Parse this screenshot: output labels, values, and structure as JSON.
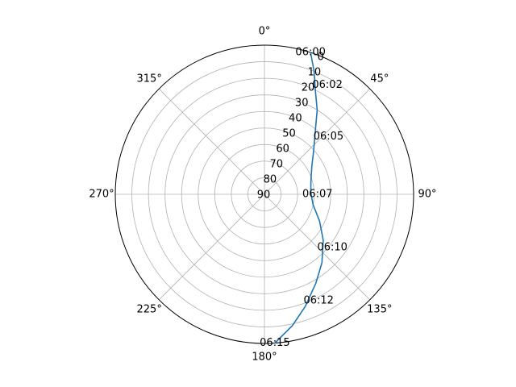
{
  "chart_data": {
    "type": "line",
    "projection": "polar",
    "theta_direction": "clockwise",
    "theta_zero": "top",
    "theta_tick_labels": [
      "0°",
      "45°",
      "90°",
      "135°",
      "180°",
      "225°",
      "270°",
      "315°"
    ],
    "r_tick_labels": [
      "0",
      "10",
      "20",
      "30",
      "40",
      "50",
      "60",
      "70",
      "80",
      "90"
    ],
    "r_axis": "elevation (90 at center, 0 at edge)",
    "grid": true,
    "series": [
      {
        "color": "#1f77b4",
        "points": [
          {
            "az": 18,
            "el": 0
          },
          {
            "az": 22,
            "el": 10
          },
          {
            "az": 26,
            "el": 20
          },
          {
            "az": 32,
            "el": 30
          },
          {
            "az": 38,
            "el": 40
          },
          {
            "az": 48,
            "el": 50
          },
          {
            "az": 60,
            "el": 57
          },
          {
            "az": 75,
            "el": 61
          },
          {
            "az": 88,
            "el": 62
          },
          {
            "az": 102,
            "el": 60
          },
          {
            "az": 116,
            "el": 53
          },
          {
            "az": 128,
            "el": 45
          },
          {
            "az": 140,
            "el": 36
          },
          {
            "az": 150,
            "el": 28
          },
          {
            "az": 160,
            "el": 18
          },
          {
            "az": 168,
            "el": 9
          },
          {
            "az": 176,
            "el": 0
          }
        ]
      }
    ],
    "annotations": [
      {
        "text": "06:00",
        "az": 18,
        "el": 0
      },
      {
        "text": "06:02",
        "az": 30,
        "el": 14
      },
      {
        "text": "06:05",
        "az": 48,
        "el": 38
      },
      {
        "text": "06:07",
        "az": 90,
        "el": 58
      },
      {
        "text": "06:10",
        "az": 128,
        "el": 38
      },
      {
        "text": "06:12",
        "az": 153,
        "el": 18
      },
      {
        "text": "06:15",
        "az": 176,
        "el": 0
      }
    ]
  }
}
